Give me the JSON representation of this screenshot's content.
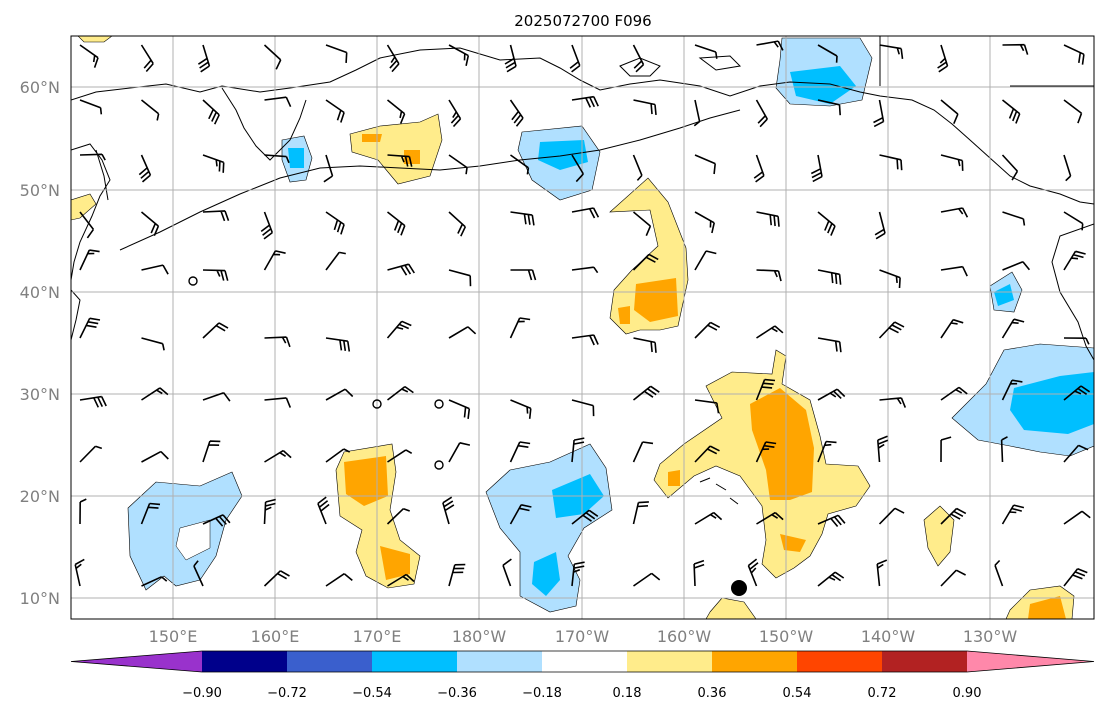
{
  "title": "2025072700 F096",
  "map": {
    "lat_ticks": [
      "60°N",
      "50°N",
      "40°N",
      "30°N",
      "20°N",
      "10°N"
    ],
    "lon_ticks": [
      "150°E",
      "160°E",
      "170°E",
      "180°W",
      "170°W",
      "160°W",
      "150°W",
      "140°W",
      "130°W"
    ],
    "grid": true,
    "projection": "plate carrée",
    "marker": {
      "description": "black dot",
      "lon": -155,
      "lat": 11
    }
  },
  "colorbar": {
    "levels": [
      "−0.90",
      "−0.72",
      "−0.54",
      "−0.36",
      "−0.18",
      "0.18",
      "0.36",
      "0.54",
      "0.72",
      "0.90"
    ],
    "colors": [
      "#9932cc",
      "#00008b",
      "#3a5fcd",
      "#00bfff",
      "#b0e0ff",
      "#ffffff",
      "#ffec8b",
      "#ffa500",
      "#ff4500",
      "#b22222",
      "#ff88aa"
    ],
    "extend": "both"
  },
  "colors": {
    "land_outline": "#000000",
    "grid": "#b0b0b0",
    "barbs": "#000000"
  }
}
